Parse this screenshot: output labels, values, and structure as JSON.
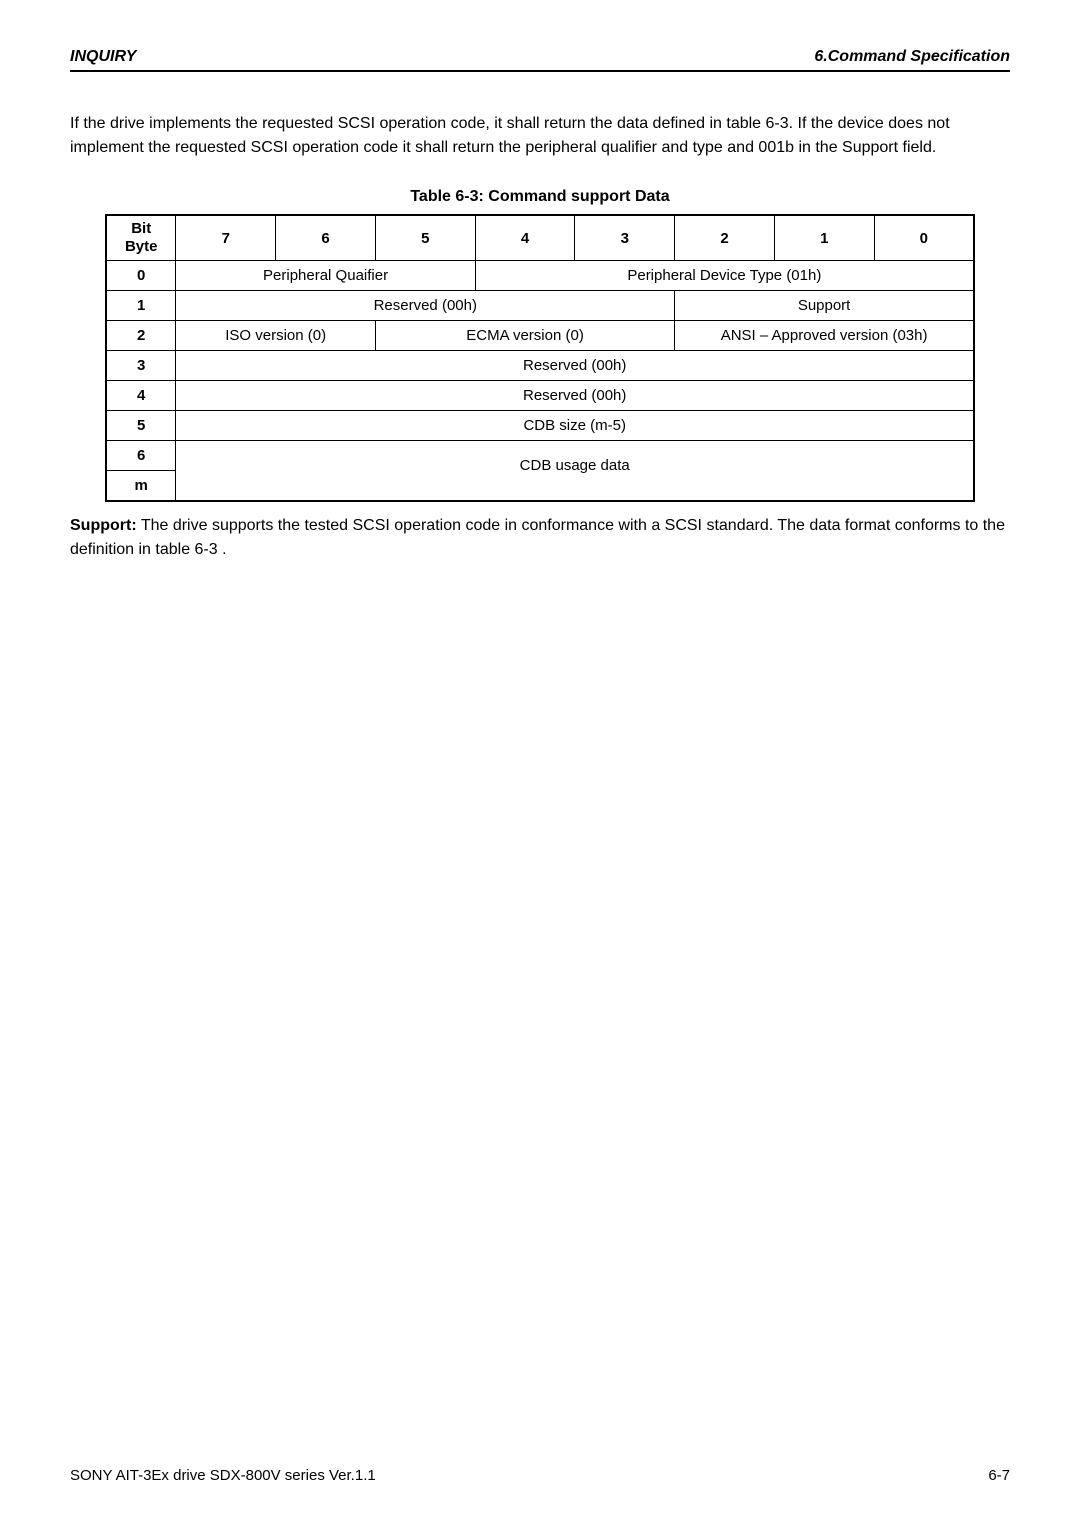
{
  "header": {
    "left": "INQUIRY",
    "right": "6.Command Specification"
  },
  "intro": "If the drive implements the requested SCSI operation code, it shall return the data defined in table 6-3. If the device does not implement the requested SCSI operation code it shall return the peripheral qualifier and type and 001b in the Support field.",
  "table": {
    "title": "Table 6-3: Command support Data",
    "bit_byte_label_line1": "Bit",
    "bit_byte_label_line2": "Byte",
    "bits": [
      "7",
      "6",
      "5",
      "4",
      "3",
      "2",
      "1",
      "0"
    ],
    "row_labels": [
      "0",
      "1",
      "2",
      "3",
      "4",
      "5",
      "6",
      "m"
    ],
    "row0": {
      "left": "Peripheral Quaifier",
      "right": "Peripheral Device Type (01h)"
    },
    "row1": {
      "left": "Reserved (00h)",
      "right": "Support"
    },
    "row2": {
      "iso": "ISO version (0)",
      "ecma": "ECMA version (0)",
      "ansi": "ANSI – Approved version (03h)"
    },
    "row3": "Reserved (00h)",
    "row4": "Reserved (00h)",
    "row5": "CDB size (m-5)",
    "row6": "CDB usage data"
  },
  "support": {
    "bold": "Support:",
    "text": " The drive supports the tested SCSI operation code in conformance with a SCSI standard. The data format conforms to the definition in table 6-3 ."
  },
  "footer": {
    "left": "SONY AIT-3Ex drive SDX-800V series Ver.1.1",
    "right": "6-7"
  }
}
